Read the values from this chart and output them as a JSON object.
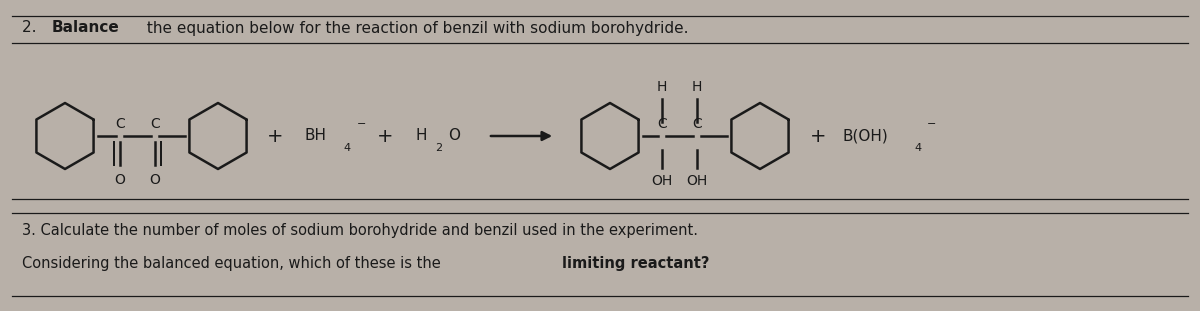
{
  "bg_color": "#b8b0a8",
  "paper_color": "#f0ece6",
  "black": "#1a1a1a",
  "figsize": [
    12,
    3.11
  ],
  "dpi": 100,
  "title_prefix": "2. ",
  "title_bold": "Balance",
  "title_rest": " the equation below for the reaction of benzil with sodium borohydride.",
  "q3_line1": "3. Calculate the number of moles of sodium borohydride and benzil used in the experiment.",
  "q3_line2_normal": "Considering the balanced equation, which of these is the ",
  "q3_line2_bold": "limiting reactant?",
  "font_title": 11,
  "font_chem": 10,
  "font_sub": 8,
  "font_q3": 10.5
}
